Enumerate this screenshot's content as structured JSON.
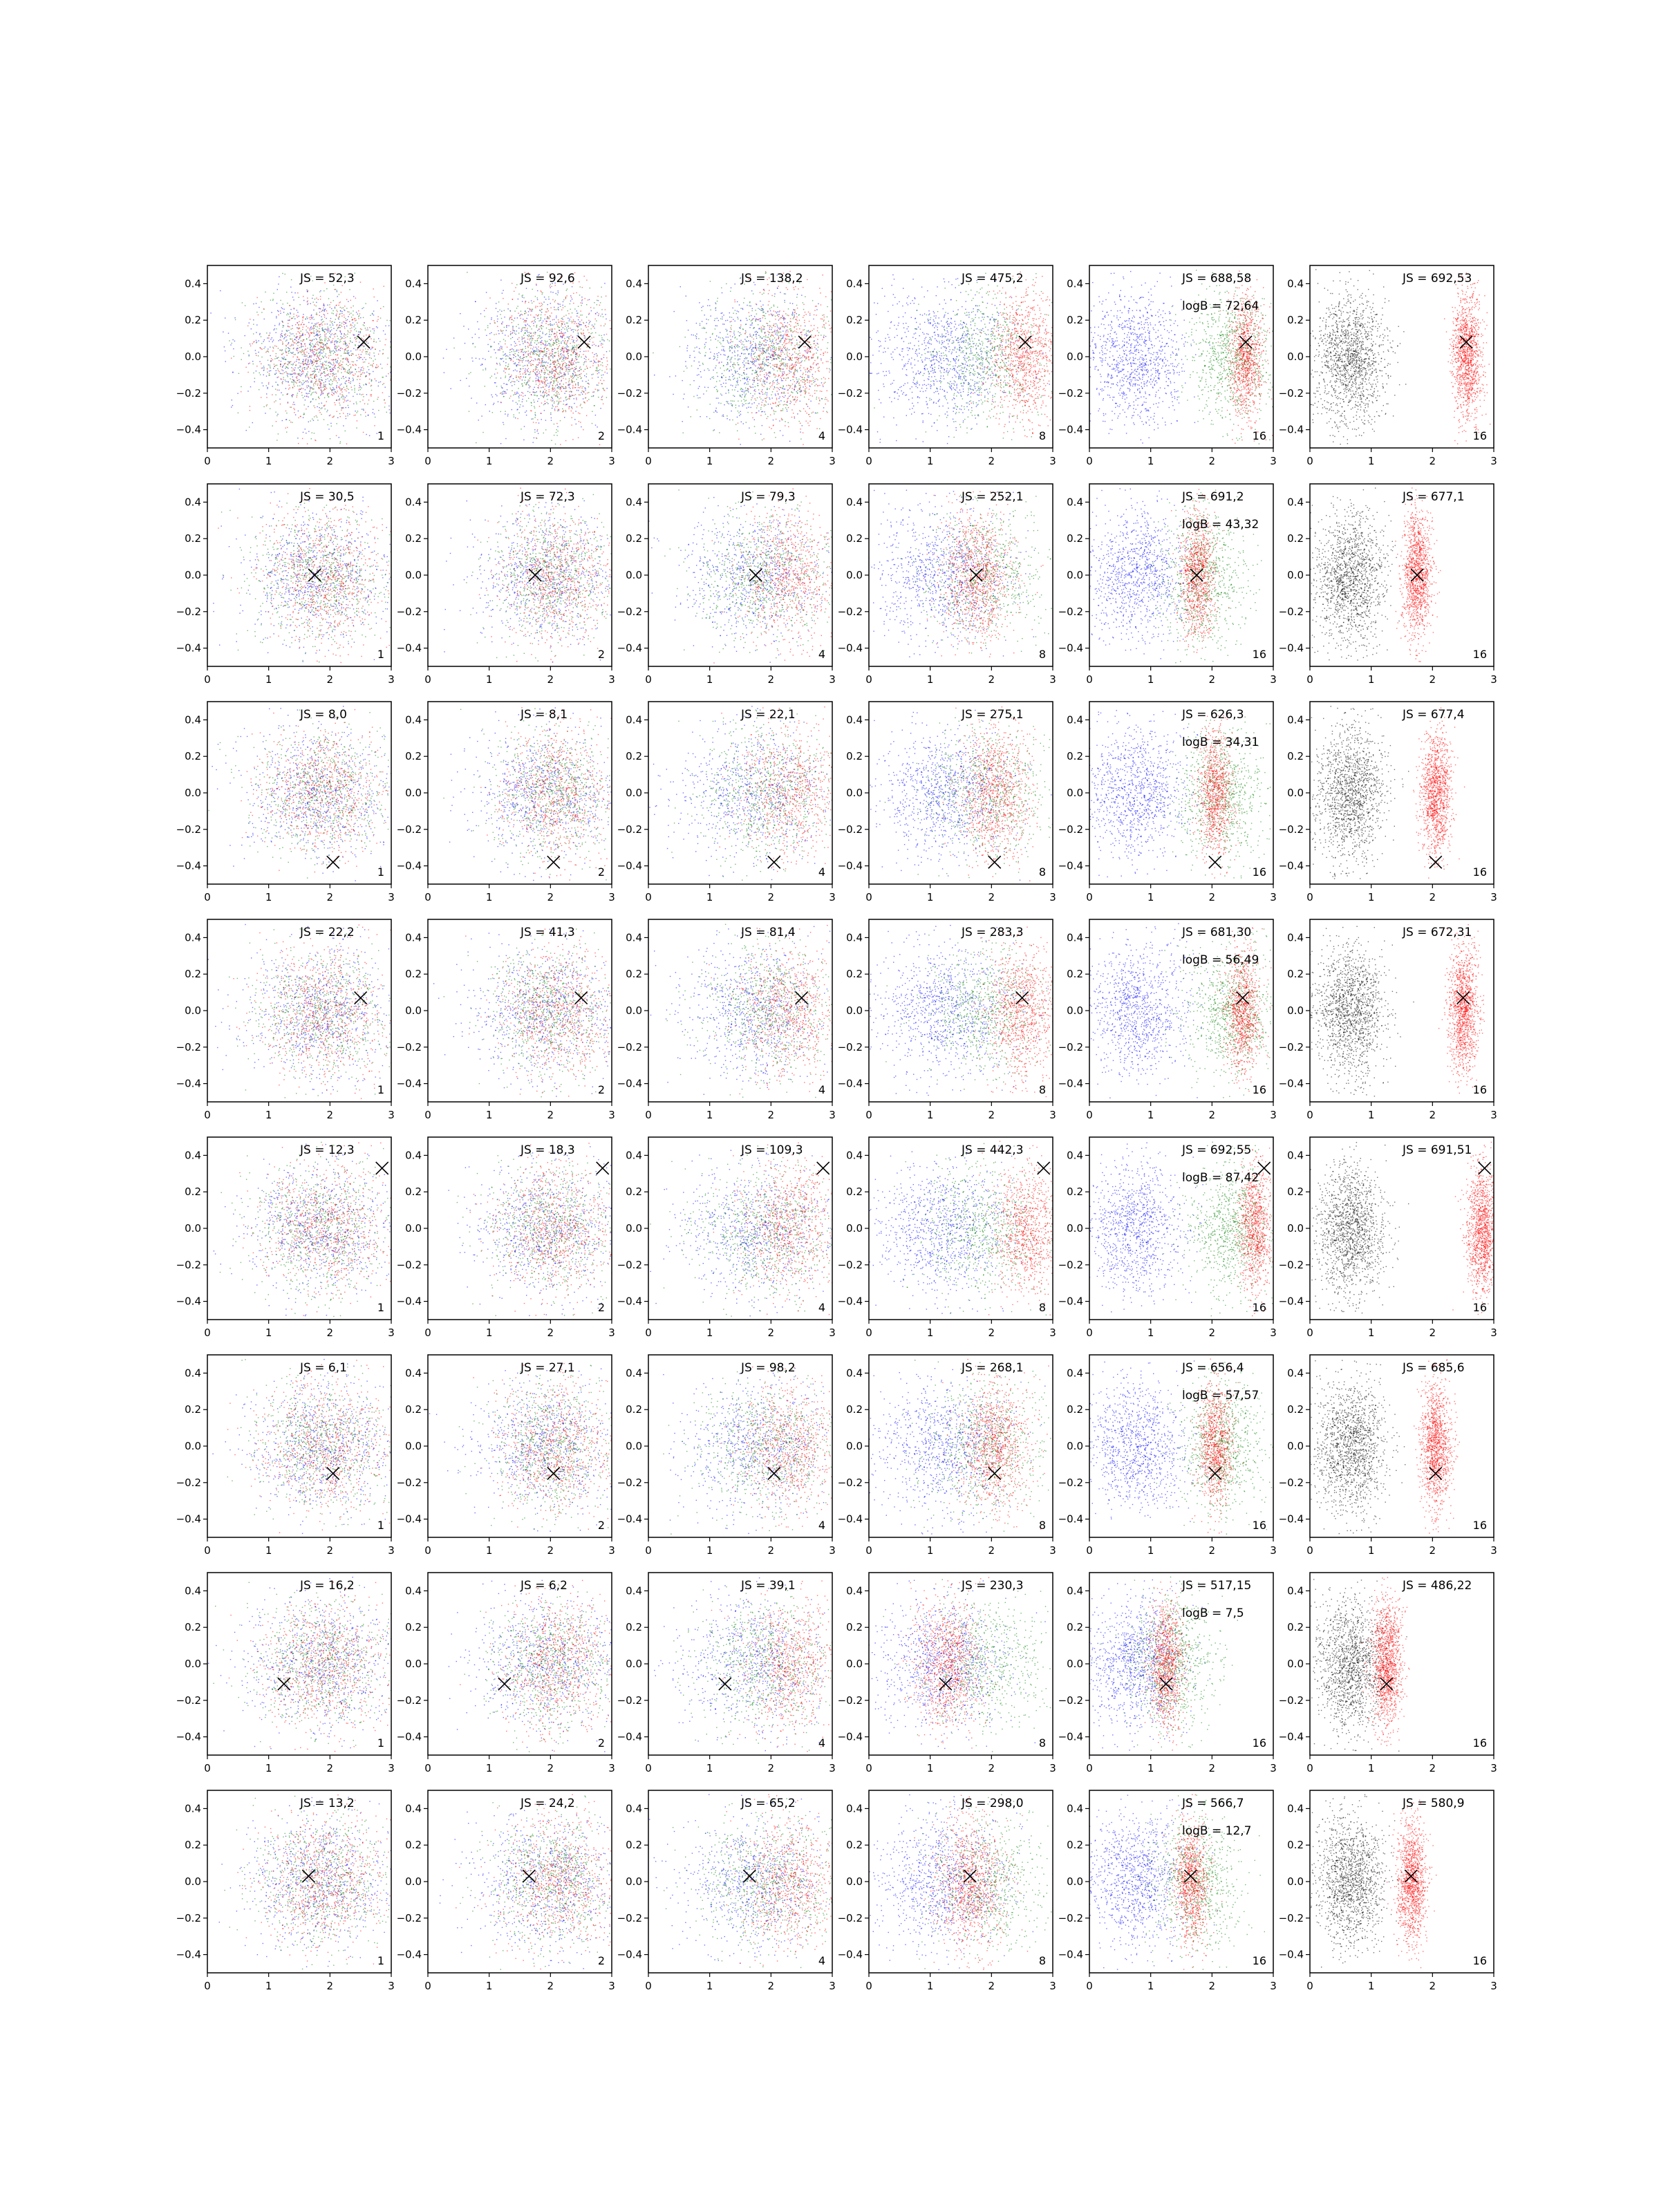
{
  "figure": {
    "rows": 8,
    "cols": 6,
    "colors": {
      "blue": "#0000ff",
      "green": "#008000",
      "red": "#ff0000",
      "black": "#000000",
      "marker": "#000000"
    }
  },
  "chart_data": {
    "type": "scatter",
    "xlim": [
      0,
      3
    ],
    "ylim": [
      -0.5,
      0.5
    ],
    "x_ticks": [
      "0",
      "1",
      "2",
      "3"
    ],
    "y_ticks": [
      "0.4",
      "0.2",
      "0.0",
      "−0.2",
      "−0.4"
    ],
    "x_tick_values": [
      0,
      1,
      2,
      3
    ],
    "y_tick_values": [
      0.4,
      0.2,
      0.0,
      -0.2,
      -0.4
    ],
    "grid": false,
    "rows": [
      {
        "marker": [
          2.55,
          0.08
        ],
        "panels": [
          {
            "js": "JS = 52,3",
            "logb": "",
            "corner": "1"
          },
          {
            "js": "JS = 92,6",
            "logb": "",
            "corner": "2"
          },
          {
            "js": "JS = 138,2",
            "logb": "",
            "corner": "4"
          },
          {
            "js": "JS = 475,2",
            "logb": "",
            "corner": "8"
          },
          {
            "js": "JS = 688,58",
            "logb": "logB = 72,64",
            "corner": "16"
          },
          {
            "js": "JS = 692,53",
            "logb": "",
            "corner": "16"
          }
        ]
      },
      {
        "marker": [
          1.75,
          0.0
        ],
        "panels": [
          {
            "js": "JS = 30,5",
            "logb": "",
            "corner": "1"
          },
          {
            "js": "JS = 72,3",
            "logb": "",
            "corner": "2"
          },
          {
            "js": "JS = 79,3",
            "logb": "",
            "corner": "4"
          },
          {
            "js": "JS = 252,1",
            "logb": "",
            "corner": "8"
          },
          {
            "js": "JS = 691,2",
            "logb": "logB = 43,32",
            "corner": "16"
          },
          {
            "js": "JS = 677,1",
            "logb": "",
            "corner": "16"
          }
        ]
      },
      {
        "marker": [
          2.05,
          -0.38
        ],
        "panels": [
          {
            "js": "JS = 8,0",
            "logb": "",
            "corner": "1"
          },
          {
            "js": "JS = 8,1",
            "logb": "",
            "corner": "2"
          },
          {
            "js": "JS = 22,1",
            "logb": "",
            "corner": "4"
          },
          {
            "js": "JS = 275,1",
            "logb": "",
            "corner": "8"
          },
          {
            "js": "JS = 626,3",
            "logb": "logB = 34,31",
            "corner": "16"
          },
          {
            "js": "JS = 677,4",
            "logb": "",
            "corner": "16"
          }
        ]
      },
      {
        "marker": [
          2.5,
          0.07
        ],
        "panels": [
          {
            "js": "JS = 22,2",
            "logb": "",
            "corner": "1"
          },
          {
            "js": "JS = 41,3",
            "logb": "",
            "corner": "2"
          },
          {
            "js": "JS = 81,4",
            "logb": "",
            "corner": "4"
          },
          {
            "js": "JS = 283,3",
            "logb": "",
            "corner": "8"
          },
          {
            "js": "JS = 681,30",
            "logb": "logB = 56,49",
            "corner": "16"
          },
          {
            "js": "JS = 672,31",
            "logb": "",
            "corner": "16"
          }
        ]
      },
      {
        "marker": [
          2.85,
          0.33
        ],
        "panels": [
          {
            "js": "JS = 12,3",
            "logb": "",
            "corner": "1"
          },
          {
            "js": "JS = 18,3",
            "logb": "",
            "corner": "2"
          },
          {
            "js": "JS = 109,3",
            "logb": "",
            "corner": "4"
          },
          {
            "js": "JS = 442,3",
            "logb": "",
            "corner": "8"
          },
          {
            "js": "JS = 692,55",
            "logb": "logB = 87,42",
            "corner": "16"
          },
          {
            "js": "JS = 691,51",
            "logb": "",
            "corner": "16"
          }
        ]
      },
      {
        "marker": [
          2.05,
          -0.15
        ],
        "panels": [
          {
            "js": "JS = 6,1",
            "logb": "",
            "corner": "1"
          },
          {
            "js": "JS = 27,1",
            "logb": "",
            "corner": "2"
          },
          {
            "js": "JS = 98,2",
            "logb": "",
            "corner": "4"
          },
          {
            "js": "JS = 268,1",
            "logb": "",
            "corner": "8"
          },
          {
            "js": "JS = 656,4",
            "logb": "logB = 57,57",
            "corner": "16"
          },
          {
            "js": "JS = 685,6",
            "logb": "",
            "corner": "16"
          }
        ]
      },
      {
        "marker": [
          1.25,
          -0.11
        ],
        "panels": [
          {
            "js": "JS = 16,2",
            "logb": "",
            "corner": "1"
          },
          {
            "js": "JS = 6,2",
            "logb": "",
            "corner": "2"
          },
          {
            "js": "JS = 39,1",
            "logb": "",
            "corner": "4"
          },
          {
            "js": "JS = 230,3",
            "logb": "",
            "corner": "8"
          },
          {
            "js": "JS = 517,15",
            "logb": "logB = 7,5",
            "corner": "16"
          },
          {
            "js": "JS = 486,22",
            "logb": "",
            "corner": "16"
          }
        ]
      },
      {
        "marker": [
          1.65,
          0.03
        ],
        "panels": [
          {
            "js": "JS = 13,2",
            "logb": "",
            "corner": "1"
          },
          {
            "js": "JS = 24,2",
            "logb": "",
            "corner": "2"
          },
          {
            "js": "JS = 65,2",
            "logb": "",
            "corner": "4"
          },
          {
            "js": "JS = 298,0",
            "logb": "",
            "corner": "8"
          },
          {
            "js": "JS = 566,7",
            "logb": "logB = 12,7",
            "corner": "16"
          },
          {
            "js": "JS = 580,9",
            "logb": "",
            "corner": "16"
          }
        ]
      }
    ]
  }
}
